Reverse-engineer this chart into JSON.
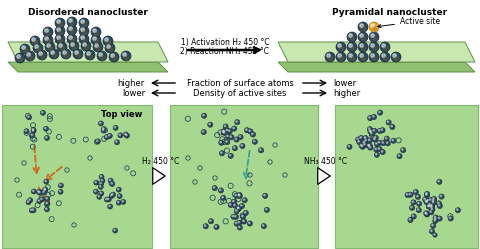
{
  "bg_color": "#ffffff",
  "green_plat_top": "#c8e8b0",
  "green_plat_side": "#90c070",
  "atom_dark_fill": "#2a4a5a",
  "atom_mid_fill": "#4a7a8a",
  "atom_outline": "#1a2a3a",
  "atom_gold": "#e8a820",
  "atom_gold_edge": "#b07010",
  "panel_green": "#a8d890",
  "panel_edge": "#80b870",
  "orange_arrow": "#d06820",
  "teal_arrow": "#30a090",
  "title_disordered": "Disordered nanocluster",
  "title_pyramidal": "Pyramidal nanocluster",
  "label_active": "Active site",
  "arrow_text1": "1) Activation H₂ 450 °C",
  "arrow_text2": "2) Reaction NH₃ 450 °C",
  "frac_label": "Fraction of surface atoms",
  "dens_label": "Density of active sites",
  "label_higher_left": "higher",
  "label_lower_left": "lower",
  "label_lower_right": "lower",
  "label_higher_right": "higher",
  "top_view_label": "Top view",
  "h2_label": "H₂ 450 °C",
  "nh3_label": "NH₃ 450 °C"
}
